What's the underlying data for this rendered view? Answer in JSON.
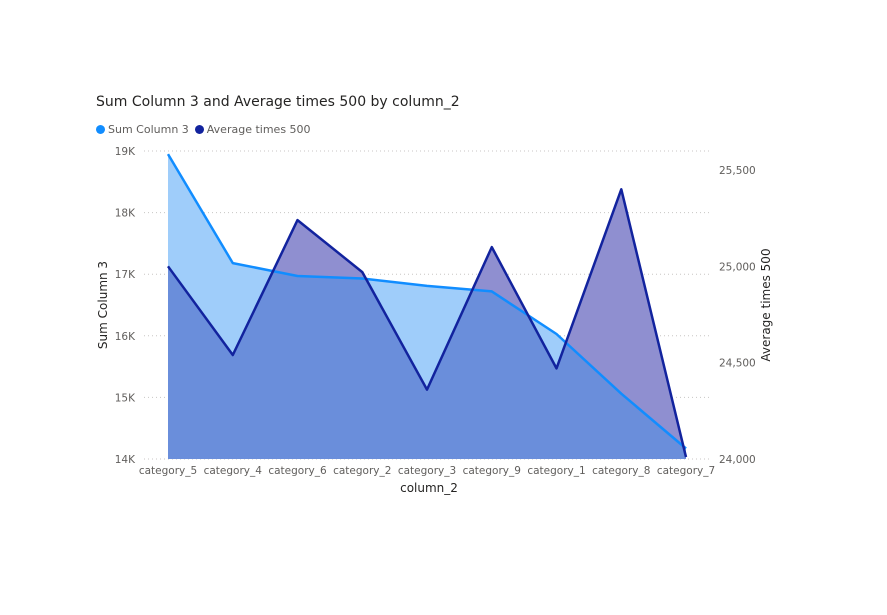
{
  "chart_data": {
    "type": "area",
    "title": "Sum Column 3 and Average times 500 by column_2",
    "xlabel": "column_2",
    "ylabel": "Sum Column 3",
    "y2label": "Average times 500",
    "categories": [
      "category_5",
      "category_4",
      "category_6",
      "category_2",
      "category_3",
      "category_9",
      "category_1",
      "category_8",
      "category_7"
    ],
    "series": [
      {
        "name": "Sum Column 3",
        "axis": "left",
        "color": "#118DFF",
        "fill": "#9fcdfa",
        "values": [
          18950,
          17180,
          16970,
          16930,
          16810,
          16720,
          16030,
          15060,
          14170
        ]
      },
      {
        "name": "Average times 500",
        "axis": "right",
        "color": "#12239E",
        "fill": "#8f8fd0",
        "values": [
          25000,
          24540,
          25240,
          24970,
          24360,
          25100,
          24470,
          25400,
          24010
        ]
      }
    ],
    "ylim": [
      14000,
      19000
    ],
    "y_ticks": [
      "14K",
      "15K",
      "16K",
      "17K",
      "18K",
      "19K"
    ],
    "y_tick_values": [
      14000,
      15000,
      16000,
      17000,
      18000,
      19000
    ],
    "y2lim": [
      24000,
      25500
    ],
    "y2_ticks": [
      "24,000",
      "24,500",
      "25,000",
      "25,500"
    ],
    "y2_tick_values": [
      24000,
      24500,
      25000,
      25500
    ],
    "grid": true,
    "legend_position": "top-left",
    "overlap_color": "#6a8edb"
  }
}
